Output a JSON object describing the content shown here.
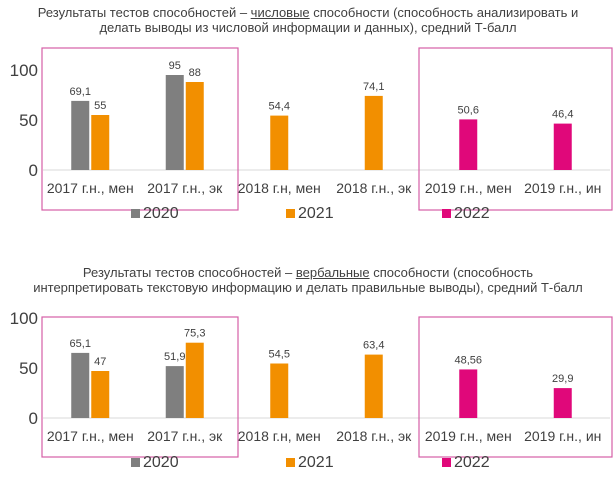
{
  "colors": {
    "2020": "#7f7f7f",
    "2021": "#f28f00",
    "2022": "#e0087a",
    "highlight_box": "#d65fa6"
  },
  "chart_data": [
    {
      "type": "bar",
      "title_parts": [
        "Результаты тестов способностей – ",
        "числовые",
        " способности (способность анализировать и делать выводы из числовой информации и данных), средний Т-балл"
      ],
      "categories": [
        "2017 г.н., мен",
        "2017 г.н., эк",
        "2018 г.н, мен",
        "2018 г.н., эк",
        "2019 г.н., мен",
        "2019 г.н., ин"
      ],
      "ylim": [
        0,
        100
      ],
      "yticks": [
        "0",
        "50",
        "100"
      ],
      "series": [
        {
          "name": "2020",
          "values": [
            69.1,
            95,
            null,
            null,
            null,
            null
          ],
          "labels": [
            "69,1",
            "95",
            "",
            "",
            "",
            ""
          ]
        },
        {
          "name": "2021",
          "values": [
            55,
            88,
            54.4,
            74.1,
            null,
            null
          ],
          "labels": [
            "55",
            "88",
            "54,4",
            "74,1",
            "",
            ""
          ]
        },
        {
          "name": "2022",
          "values": [
            null,
            null,
            null,
            null,
            50.6,
            46.4
          ],
          "labels": [
            "",
            "",
            "",
            "",
            "50,6",
            "46,4"
          ]
        }
      ],
      "legend": [
        "2020",
        "2021",
        "2022"
      ]
    },
    {
      "type": "bar",
      "title_parts": [
        "Результаты тестов способностей – ",
        "вербальные",
        " способности (способность интерпретировать текстовую информацию и делать правильные выводы), средний Т-балл"
      ],
      "categories": [
        "2017 г.н., мен",
        "2017 г.н., эк",
        "2018 г.н, мен",
        "2018 г.н., эк",
        "2019 г.н., мен",
        "2019 г.н., ин"
      ],
      "ylim": [
        0,
        100
      ],
      "yticks": [
        "0",
        "50",
        "100"
      ],
      "series": [
        {
          "name": "2020",
          "values": [
            65.1,
            51.9,
            null,
            null,
            null,
            null
          ],
          "labels": [
            "65,1",
            "51,9",
            "",
            "",
            "",
            ""
          ]
        },
        {
          "name": "2021",
          "values": [
            47,
            75.3,
            54.5,
            63.4,
            null,
            null
          ],
          "labels": [
            "47",
            "75,3",
            "54,5",
            "63,4",
            "",
            ""
          ]
        },
        {
          "name": "2022",
          "values": [
            null,
            null,
            null,
            null,
            48.56,
            29.9
          ],
          "labels": [
            "",
            "",
            "",
            "",
            "48,56",
            "29,9"
          ]
        }
      ],
      "legend": [
        "2020",
        "2021",
        "2022"
      ]
    }
  ]
}
